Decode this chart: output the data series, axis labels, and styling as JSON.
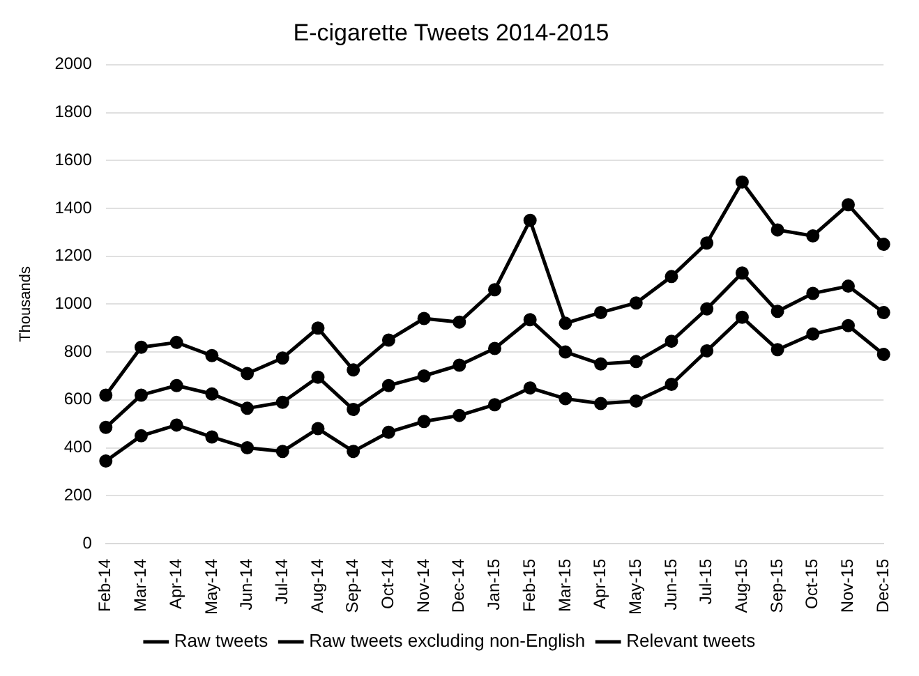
{
  "chart_data": {
    "type": "line",
    "title": "E-cigarette Tweets 2014-2015",
    "ylabel": "Thousands",
    "categories": [
      "Feb-14",
      "Mar-14",
      "Apr-14",
      "May-14",
      "Jun-14",
      "Jul-14",
      "Aug-14",
      "Sep-14",
      "Oct-14",
      "Nov-14",
      "Dec-14",
      "Jan-15",
      "Feb-15",
      "Mar-15",
      "Apr-15",
      "May-15",
      "Jun-15",
      "Jul-15",
      "Aug-15",
      "Sep-15",
      "Oct-15",
      "Nov-15",
      "Dec-15"
    ],
    "series": [
      {
        "name": "Raw tweets",
        "color": "#000000",
        "values": [
          620,
          820,
          840,
          785,
          710,
          775,
          900,
          725,
          850,
          940,
          925,
          1060,
          1350,
          920,
          965,
          1005,
          1115,
          1255,
          1510,
          1310,
          1285,
          1415,
          1250
        ]
      },
      {
        "name": "Raw tweets excluding non-English",
        "color": "#000000",
        "values": [
          485,
          620,
          660,
          625,
          565,
          590,
          695,
          560,
          660,
          700,
          745,
          815,
          935,
          800,
          750,
          760,
          845,
          980,
          1130,
          970,
          1045,
          1075,
          965
        ]
      },
      {
        "name": "Relevant tweets",
        "color": "#000000",
        "values": [
          345,
          450,
          495,
          445,
          400,
          385,
          480,
          385,
          465,
          510,
          535,
          580,
          650,
          605,
          585,
          595,
          665,
          805,
          945,
          810,
          875,
          910,
          790
        ]
      }
    ],
    "ylim": [
      0,
      2000
    ],
    "yticks": [
      0,
      200,
      400,
      600,
      800,
      1000,
      1200,
      1400,
      1600,
      1800,
      2000
    ],
    "grid": "y",
    "legend": "bottom",
    "marker": "circle",
    "line_style": "solid"
  }
}
